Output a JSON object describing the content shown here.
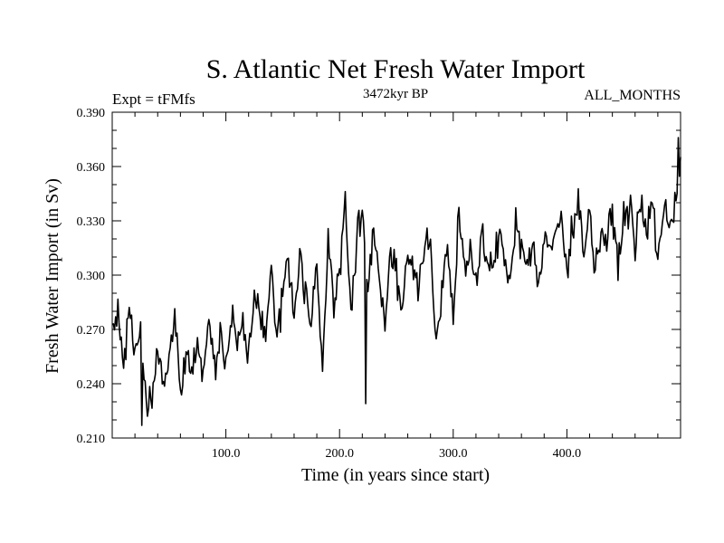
{
  "chart_data": {
    "type": "line",
    "title": "S. Atlantic Net Fresh Water Import",
    "subtitle": "3472kyr BP",
    "left_label": "Expt = tFMfs",
    "right_label": "ALL_MONTHS",
    "xlabel": "Time (in years since start)",
    "ylabel": "Fresh Water Import (in Sv)",
    "xlim": [
      0,
      500
    ],
    "ylim": [
      0.21,
      0.39
    ],
    "x_ticks": [
      100,
      200,
      300,
      400
    ],
    "x_tick_labels": [
      "100.0",
      "200.0",
      "300.0",
      "400.0"
    ],
    "y_ticks": [
      0.21,
      0.24,
      0.27,
      0.3,
      0.33,
      0.36,
      0.39
    ],
    "y_tick_labels": [
      "0.210",
      "0.240",
      "0.270",
      "0.300",
      "0.330",
      "0.360",
      "0.390"
    ],
    "series": [
      {
        "name": "fresh water import",
        "x": [
          0,
          5,
          10,
          15,
          20,
          25,
          30,
          35,
          40,
          45,
          50,
          55,
          60,
          65,
          70,
          75,
          80,
          85,
          90,
          95,
          100,
          105,
          110,
          115,
          120,
          125,
          130,
          135,
          140,
          145,
          150,
          155,
          160,
          165,
          170,
          175,
          180,
          185,
          190,
          195,
          200,
          205,
          210,
          215,
          220,
          225,
          230,
          235,
          240,
          245,
          250,
          255,
          260,
          265,
          270,
          275,
          280,
          285,
          290,
          295,
          300,
          305,
          310,
          315,
          320,
          325,
          330,
          335,
          340,
          345,
          350,
          355,
          360,
          365,
          370,
          375,
          380,
          385,
          390,
          395,
          400,
          405,
          410,
          415,
          420,
          425,
          430,
          435,
          440,
          445,
          450,
          455,
          460,
          465,
          470,
          475,
          480,
          485,
          490,
          495,
          499
        ],
        "values": [
          0.268,
          0.282,
          0.248,
          0.29,
          0.255,
          0.272,
          0.228,
          0.235,
          0.262,
          0.24,
          0.252,
          0.28,
          0.238,
          0.258,
          0.242,
          0.262,
          0.245,
          0.275,
          0.25,
          0.268,
          0.252,
          0.28,
          0.262,
          0.272,
          0.258,
          0.292,
          0.28,
          0.27,
          0.305,
          0.262,
          0.292,
          0.308,
          0.278,
          0.312,
          0.29,
          0.275,
          0.305,
          0.25,
          0.318,
          0.282,
          0.302,
          0.342,
          0.28,
          0.315,
          0.335,
          0.29,
          0.328,
          0.3,
          0.272,
          0.318,
          0.298,
          0.282,
          0.315,
          0.305,
          0.29,
          0.32,
          0.312,
          0.262,
          0.29,
          0.32,
          0.275,
          0.338,
          0.302,
          0.315,
          0.29,
          0.322,
          0.308,
          0.3,
          0.325,
          0.31,
          0.298,
          0.332,
          0.315,
          0.305,
          0.32,
          0.292,
          0.318,
          0.312,
          0.325,
          0.33,
          0.302,
          0.33,
          0.34,
          0.315,
          0.335,
          0.302,
          0.325,
          0.318,
          0.332,
          0.308,
          0.33,
          0.34,
          0.318,
          0.338,
          0.322,
          0.342,
          0.31,
          0.335,
          0.328,
          0.34,
          0.36
        ]
      }
    ],
    "extremes": {
      "min": {
        "x": 26,
        "value": 0.217
      },
      "low_dip": {
        "x": 223,
        "value": 0.229
      },
      "max": {
        "x": 498,
        "value": 0.376
      }
    }
  }
}
